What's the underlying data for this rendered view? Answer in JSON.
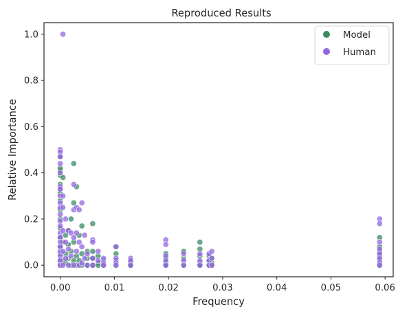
{
  "chart_data": {
    "type": "scatter",
    "title": "Reproduced Results",
    "xlabel": "Frequency",
    "ylabel": "Relative Importance",
    "xlim": [
      -0.003,
      0.0615
    ],
    "ylim": [
      -0.05,
      1.05
    ],
    "xticks": [
      0.0,
      0.01,
      0.02,
      0.03,
      0.04,
      0.05,
      0.06
    ],
    "xtick_labels": [
      "0.00",
      "0.01",
      "0.02",
      "0.03",
      "0.04",
      "0.05",
      "0.06"
    ],
    "yticks": [
      0.0,
      0.2,
      0.4,
      0.6,
      0.8,
      1.0
    ],
    "ytick_labels": [
      "0.0",
      "0.2",
      "0.4",
      "0.6",
      "0.8",
      "1.0"
    ],
    "grid": false,
    "legend_position": "top-right",
    "series": [
      {
        "name": "Model",
        "color": "#3a8a63",
        "points": [
          [
            0.0,
            0.0
          ],
          [
            0.0,
            0.02
          ],
          [
            0.0,
            0.05
          ],
          [
            0.0,
            0.08
          ],
          [
            0.0,
            0.12
          ],
          [
            0.0,
            0.16
          ],
          [
            0.0,
            0.2
          ],
          [
            0.0,
            0.24
          ],
          [
            0.0,
            0.28
          ],
          [
            0.0,
            0.31
          ],
          [
            0.0,
            0.33
          ],
          [
            0.0,
            0.35
          ],
          [
            0.0,
            0.39
          ],
          [
            0.0,
            0.41
          ],
          [
            0.0,
            0.42
          ],
          [
            0.0,
            0.47
          ],
          [
            0.0005,
            0.38
          ],
          [
            0.0005,
            0.1
          ],
          [
            0.0005,
            0.02
          ],
          [
            0.001,
            0.05
          ],
          [
            0.001,
            0.13
          ],
          [
            0.001,
            0.01
          ],
          [
            0.0015,
            0.03
          ],
          [
            0.0015,
            0.09
          ],
          [
            0.0015,
            0.15
          ],
          [
            0.002,
            0.2
          ],
          [
            0.002,
            0.0
          ],
          [
            0.002,
            0.06
          ],
          [
            0.0025,
            0.27
          ],
          [
            0.0025,
            0.44
          ],
          [
            0.0025,
            0.02
          ],
          [
            0.0025,
            0.1
          ],
          [
            0.003,
            0.34
          ],
          [
            0.003,
            0.04
          ],
          [
            0.003,
            0.0
          ],
          [
            0.0035,
            0.13
          ],
          [
            0.0035,
            0.02
          ],
          [
            0.004,
            0.17
          ],
          [
            0.004,
            0.05
          ],
          [
            0.004,
            0.0
          ],
          [
            0.005,
            0.06
          ],
          [
            0.005,
            0.03
          ],
          [
            0.005,
            0.0
          ],
          [
            0.006,
            0.18
          ],
          [
            0.006,
            0.06
          ],
          [
            0.006,
            0.03
          ],
          [
            0.006,
            0.0
          ],
          [
            0.007,
            0.04
          ],
          [
            0.007,
            0.01
          ],
          [
            0.007,
            0.0
          ],
          [
            0.008,
            0.02
          ],
          [
            0.008,
            0.0
          ],
          [
            0.0103,
            0.08
          ],
          [
            0.0103,
            0.05
          ],
          [
            0.0103,
            0.02
          ],
          [
            0.0103,
            0.0
          ],
          [
            0.013,
            0.01
          ],
          [
            0.013,
            0.0
          ],
          [
            0.0195,
            0.05
          ],
          [
            0.0195,
            0.03
          ],
          [
            0.0195,
            0.01
          ],
          [
            0.0195,
            0.0
          ],
          [
            0.0228,
            0.06
          ],
          [
            0.0228,
            0.03
          ],
          [
            0.0228,
            0.0
          ],
          [
            0.0258,
            0.1
          ],
          [
            0.0258,
            0.07
          ],
          [
            0.0258,
            0.04
          ],
          [
            0.0258,
            0.01
          ],
          [
            0.0258,
            0.0
          ],
          [
            0.0275,
            0.04
          ],
          [
            0.0275,
            0.02
          ],
          [
            0.0275,
            0.0
          ],
          [
            0.028,
            0.03
          ],
          [
            0.028,
            0.01
          ],
          [
            0.028,
            0.0
          ],
          [
            0.059,
            0.12
          ],
          [
            0.059,
            0.08
          ],
          [
            0.059,
            0.06
          ],
          [
            0.059,
            0.04
          ],
          [
            0.059,
            0.02
          ],
          [
            0.059,
            0.0
          ]
        ]
      },
      {
        "name": "Human",
        "color": "#9366e0",
        "points": [
          [
            0.0005,
            1.0
          ],
          [
            0.0,
            0.5
          ],
          [
            0.0,
            0.49
          ],
          [
            0.0,
            0.47
          ],
          [
            0.0,
            0.44
          ],
          [
            0.0,
            0.4
          ],
          [
            0.0,
            0.34
          ],
          [
            0.0,
            0.33
          ],
          [
            0.0,
            0.3
          ],
          [
            0.0,
            0.27
          ],
          [
            0.0,
            0.25
          ],
          [
            0.0,
            0.22
          ],
          [
            0.0,
            0.19
          ],
          [
            0.0,
            0.17
          ],
          [
            0.0,
            0.14
          ],
          [
            0.0,
            0.12
          ],
          [
            0.0,
            0.1
          ],
          [
            0.0,
            0.08
          ],
          [
            0.0,
            0.06
          ],
          [
            0.0,
            0.04
          ],
          [
            0.0,
            0.02
          ],
          [
            0.0,
            0.0
          ],
          [
            0.0005,
            0.3
          ],
          [
            0.0005,
            0.25
          ],
          [
            0.0005,
            0.15
          ],
          [
            0.0005,
            0.06
          ],
          [
            0.0005,
            0.0
          ],
          [
            0.001,
            0.2
          ],
          [
            0.001,
            0.1
          ],
          [
            0.001,
            0.03
          ],
          [
            0.0015,
            0.15
          ],
          [
            0.0015,
            0.07
          ],
          [
            0.0015,
            0.0
          ],
          [
            0.002,
            0.14
          ],
          [
            0.002,
            0.04
          ],
          [
            0.0025,
            0.35
          ],
          [
            0.0025,
            0.24
          ],
          [
            0.0025,
            0.12
          ],
          [
            0.0025,
            0.0
          ],
          [
            0.003,
            0.25
          ],
          [
            0.003,
            0.14
          ],
          [
            0.003,
            0.06
          ],
          [
            0.0035,
            0.24
          ],
          [
            0.0035,
            0.1
          ],
          [
            0.0035,
            0.0
          ],
          [
            0.004,
            0.27
          ],
          [
            0.004,
            0.08
          ],
          [
            0.004,
            0.01
          ],
          [
            0.0045,
            0.13
          ],
          [
            0.0045,
            0.03
          ],
          [
            0.005,
            0.05
          ],
          [
            0.005,
            0.0
          ],
          [
            0.006,
            0.11
          ],
          [
            0.006,
            0.1
          ],
          [
            0.006,
            0.03
          ],
          [
            0.006,
            0.0
          ],
          [
            0.007,
            0.06
          ],
          [
            0.007,
            0.02
          ],
          [
            0.008,
            0.03
          ],
          [
            0.008,
            0.01
          ],
          [
            0.008,
            0.0
          ],
          [
            0.0103,
            0.08
          ],
          [
            0.0103,
            0.03
          ],
          [
            0.0103,
            0.01
          ],
          [
            0.0103,
            0.0
          ],
          [
            0.013,
            0.03
          ],
          [
            0.013,
            0.02
          ],
          [
            0.013,
            0.0
          ],
          [
            0.0195,
            0.11
          ],
          [
            0.0195,
            0.09
          ],
          [
            0.0195,
            0.04
          ],
          [
            0.0195,
            0.02
          ],
          [
            0.0195,
            0.0
          ],
          [
            0.0228,
            0.05
          ],
          [
            0.0228,
            0.02
          ],
          [
            0.0228,
            0.0
          ],
          [
            0.0258,
            0.05
          ],
          [
            0.0258,
            0.02
          ],
          [
            0.0258,
            0.0
          ],
          [
            0.0275,
            0.05
          ],
          [
            0.0275,
            0.02
          ],
          [
            0.0275,
            0.0
          ],
          [
            0.028,
            0.06
          ],
          [
            0.028,
            0.03
          ],
          [
            0.028,
            0.0
          ],
          [
            0.059,
            0.2
          ],
          [
            0.059,
            0.18
          ],
          [
            0.059,
            0.1
          ],
          [
            0.059,
            0.07
          ],
          [
            0.059,
            0.05
          ],
          [
            0.059,
            0.03
          ],
          [
            0.059,
            0.01
          ],
          [
            0.059,
            0.0
          ]
        ]
      }
    ]
  }
}
